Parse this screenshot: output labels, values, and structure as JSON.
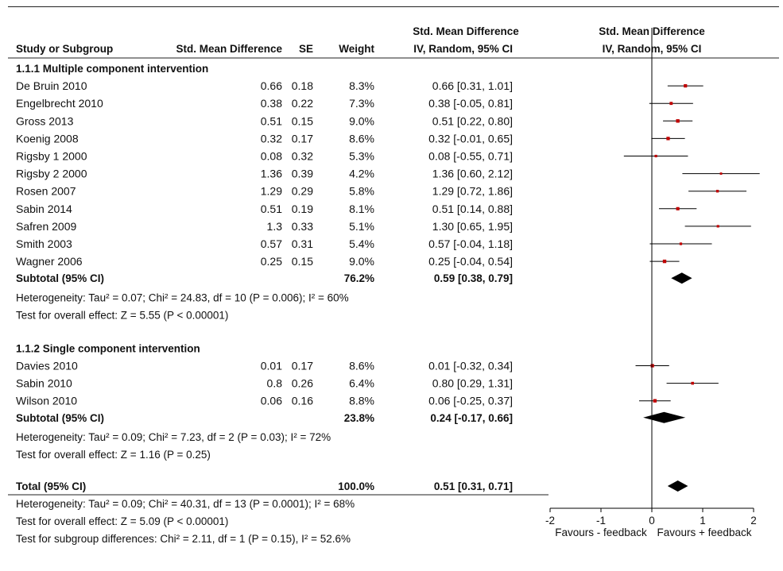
{
  "headers": {
    "study": "Study or Subgroup",
    "smd": "Std. Mean Difference",
    "se": "SE",
    "weight": "Weight",
    "ci_line1": "Std. Mean Difference",
    "ci_line2": "IV, Random, 95% CI",
    "plot_line1": "Std. Mean Difference",
    "plot_line2": "IV, Random, 95% CI"
  },
  "colors": {
    "point": "#c00000",
    "line": "#000000",
    "rule": "#222222"
  },
  "subgroups": [
    {
      "title": "1.1.1 Multiple component intervention",
      "studies": [
        {
          "name": "De Bruin 2010",
          "smd_text": "0.66",
          "se": "0.18",
          "weight": "8.3%",
          "ci_text": "0.66 [0.31, 1.01]",
          "est": 0.66,
          "lo": 0.31,
          "hi": 1.01
        },
        {
          "name": "Engelbrecht 2010",
          "smd_text": "0.38",
          "se": "0.22",
          "weight": "7.3%",
          "ci_text": "0.38 [-0.05, 0.81]",
          "est": 0.38,
          "lo": -0.05,
          "hi": 0.81
        },
        {
          "name": "Gross 2013",
          "smd_text": "0.51",
          "se": "0.15",
          "weight": "9.0%",
          "ci_text": "0.51 [0.22, 0.80]",
          "est": 0.51,
          "lo": 0.22,
          "hi": 0.8
        },
        {
          "name": "Koenig 2008",
          "smd_text": "0.32",
          "se": "0.17",
          "weight": "8.6%",
          "ci_text": "0.32 [-0.01, 0.65]",
          "est": 0.32,
          "lo": -0.01,
          "hi": 0.65
        },
        {
          "name": "Rigsby 1 2000",
          "smd_text": "0.08",
          "se": "0.32",
          "weight": "5.3%",
          "ci_text": "0.08 [-0.55, 0.71]",
          "est": 0.08,
          "lo": -0.55,
          "hi": 0.71
        },
        {
          "name": "Rigsby 2 2000",
          "smd_text": "1.36",
          "se": "0.39",
          "weight": "4.2%",
          "ci_text": "1.36 [0.60, 2.12]",
          "est": 1.36,
          "lo": 0.6,
          "hi": 2.12
        },
        {
          "name": "Rosen 2007",
          "smd_text": "1.29",
          "se": "0.29",
          "weight": "5.8%",
          "ci_text": "1.29 [0.72, 1.86]",
          "est": 1.29,
          "lo": 0.72,
          "hi": 1.86
        },
        {
          "name": "Sabin 2014",
          "smd_text": "0.51",
          "se": "0.19",
          "weight": "8.1%",
          "ci_text": "0.51 [0.14, 0.88]",
          "est": 0.51,
          "lo": 0.14,
          "hi": 0.88
        },
        {
          "name": "Safren 2009",
          "smd_text": "1.3",
          "se": "0.33",
          "weight": "5.1%",
          "ci_text": "1.30 [0.65, 1.95]",
          "est": 1.3,
          "lo": 0.65,
          "hi": 1.95
        },
        {
          "name": "Smith 2003",
          "smd_text": "0.57",
          "se": "0.31",
          "weight": "5.4%",
          "ci_text": "0.57 [-0.04, 1.18]",
          "est": 0.57,
          "lo": -0.04,
          "hi": 1.18
        },
        {
          "name": "Wagner 2006",
          "smd_text": "0.25",
          "se": "0.15",
          "weight": "9.0%",
          "ci_text": "0.25 [-0.04, 0.54]",
          "est": 0.25,
          "lo": -0.04,
          "hi": 0.54
        }
      ],
      "subtotal": {
        "label": "Subtotal (95% CI)",
        "weight": "76.2%",
        "ci_text": "0.59 [0.38, 0.79]",
        "est": 0.59,
        "lo": 0.38,
        "hi": 0.79
      },
      "heterogeneity": "Heterogeneity: Tau² = 0.07; Chi² = 24.83, df = 10 (P = 0.006); I² = 60%",
      "overall": "Test for overall effect: Z = 5.55 (P < 0.00001)"
    },
    {
      "title": "1.1.2 Single component intervention",
      "studies": [
        {
          "name": "Davies 2010",
          "smd_text": "0.01",
          "se": "0.17",
          "weight": "8.6%",
          "ci_text": "0.01 [-0.32, 0.34]",
          "est": 0.01,
          "lo": -0.32,
          "hi": 0.34
        },
        {
          "name": "Sabin 2010",
          "smd_text": "0.8",
          "se": "0.26",
          "weight": "6.4%",
          "ci_text": "0.80 [0.29, 1.31]",
          "est": 0.8,
          "lo": 0.29,
          "hi": 1.31
        },
        {
          "name": "Wilson 2010",
          "smd_text": "0.06",
          "se": "0.16",
          "weight": "8.8%",
          "ci_text": "0.06 [-0.25, 0.37]",
          "est": 0.06,
          "lo": -0.25,
          "hi": 0.37
        }
      ],
      "subtotal": {
        "label": "Subtotal (95% CI)",
        "weight": "23.8%",
        "ci_text": "0.24 [-0.17, 0.66]",
        "est": 0.24,
        "lo": -0.17,
        "hi": 0.66
      },
      "heterogeneity": "Heterogeneity: Tau² = 0.09; Chi² = 7.23, df = 2 (P = 0.03); I² = 72%",
      "overall": "Test for overall effect: Z = 1.16 (P = 0.25)"
    }
  ],
  "total": {
    "label": "Total (95% CI)",
    "weight": "100.0%",
    "ci_text": "0.51 [0.31, 0.71]",
    "est": 0.51,
    "lo": 0.31,
    "hi": 0.71,
    "heterogeneity": "Heterogeneity: Tau² = 0.09; Chi² = 40.31, df = 13 (P = 0.0001); I² = 68%",
    "overall": "Test for overall effect: Z = 5.09 (P < 0.00001)",
    "subgroup_diff": "Test for subgroup differences: Chi² = 2.11, df = 1 (P = 0.15), I² = 52.6%"
  },
  "chart_data": {
    "type": "forest",
    "xlim": [
      -2,
      2
    ],
    "xticks": [
      -2,
      -1,
      0,
      1,
      2
    ],
    "xtick_labels": [
      "-2",
      "-1",
      "0",
      "1",
      "2"
    ],
    "favours_left": "Favours - feedback",
    "favours_right": "Favours + feedback",
    "reference_line": 0
  }
}
